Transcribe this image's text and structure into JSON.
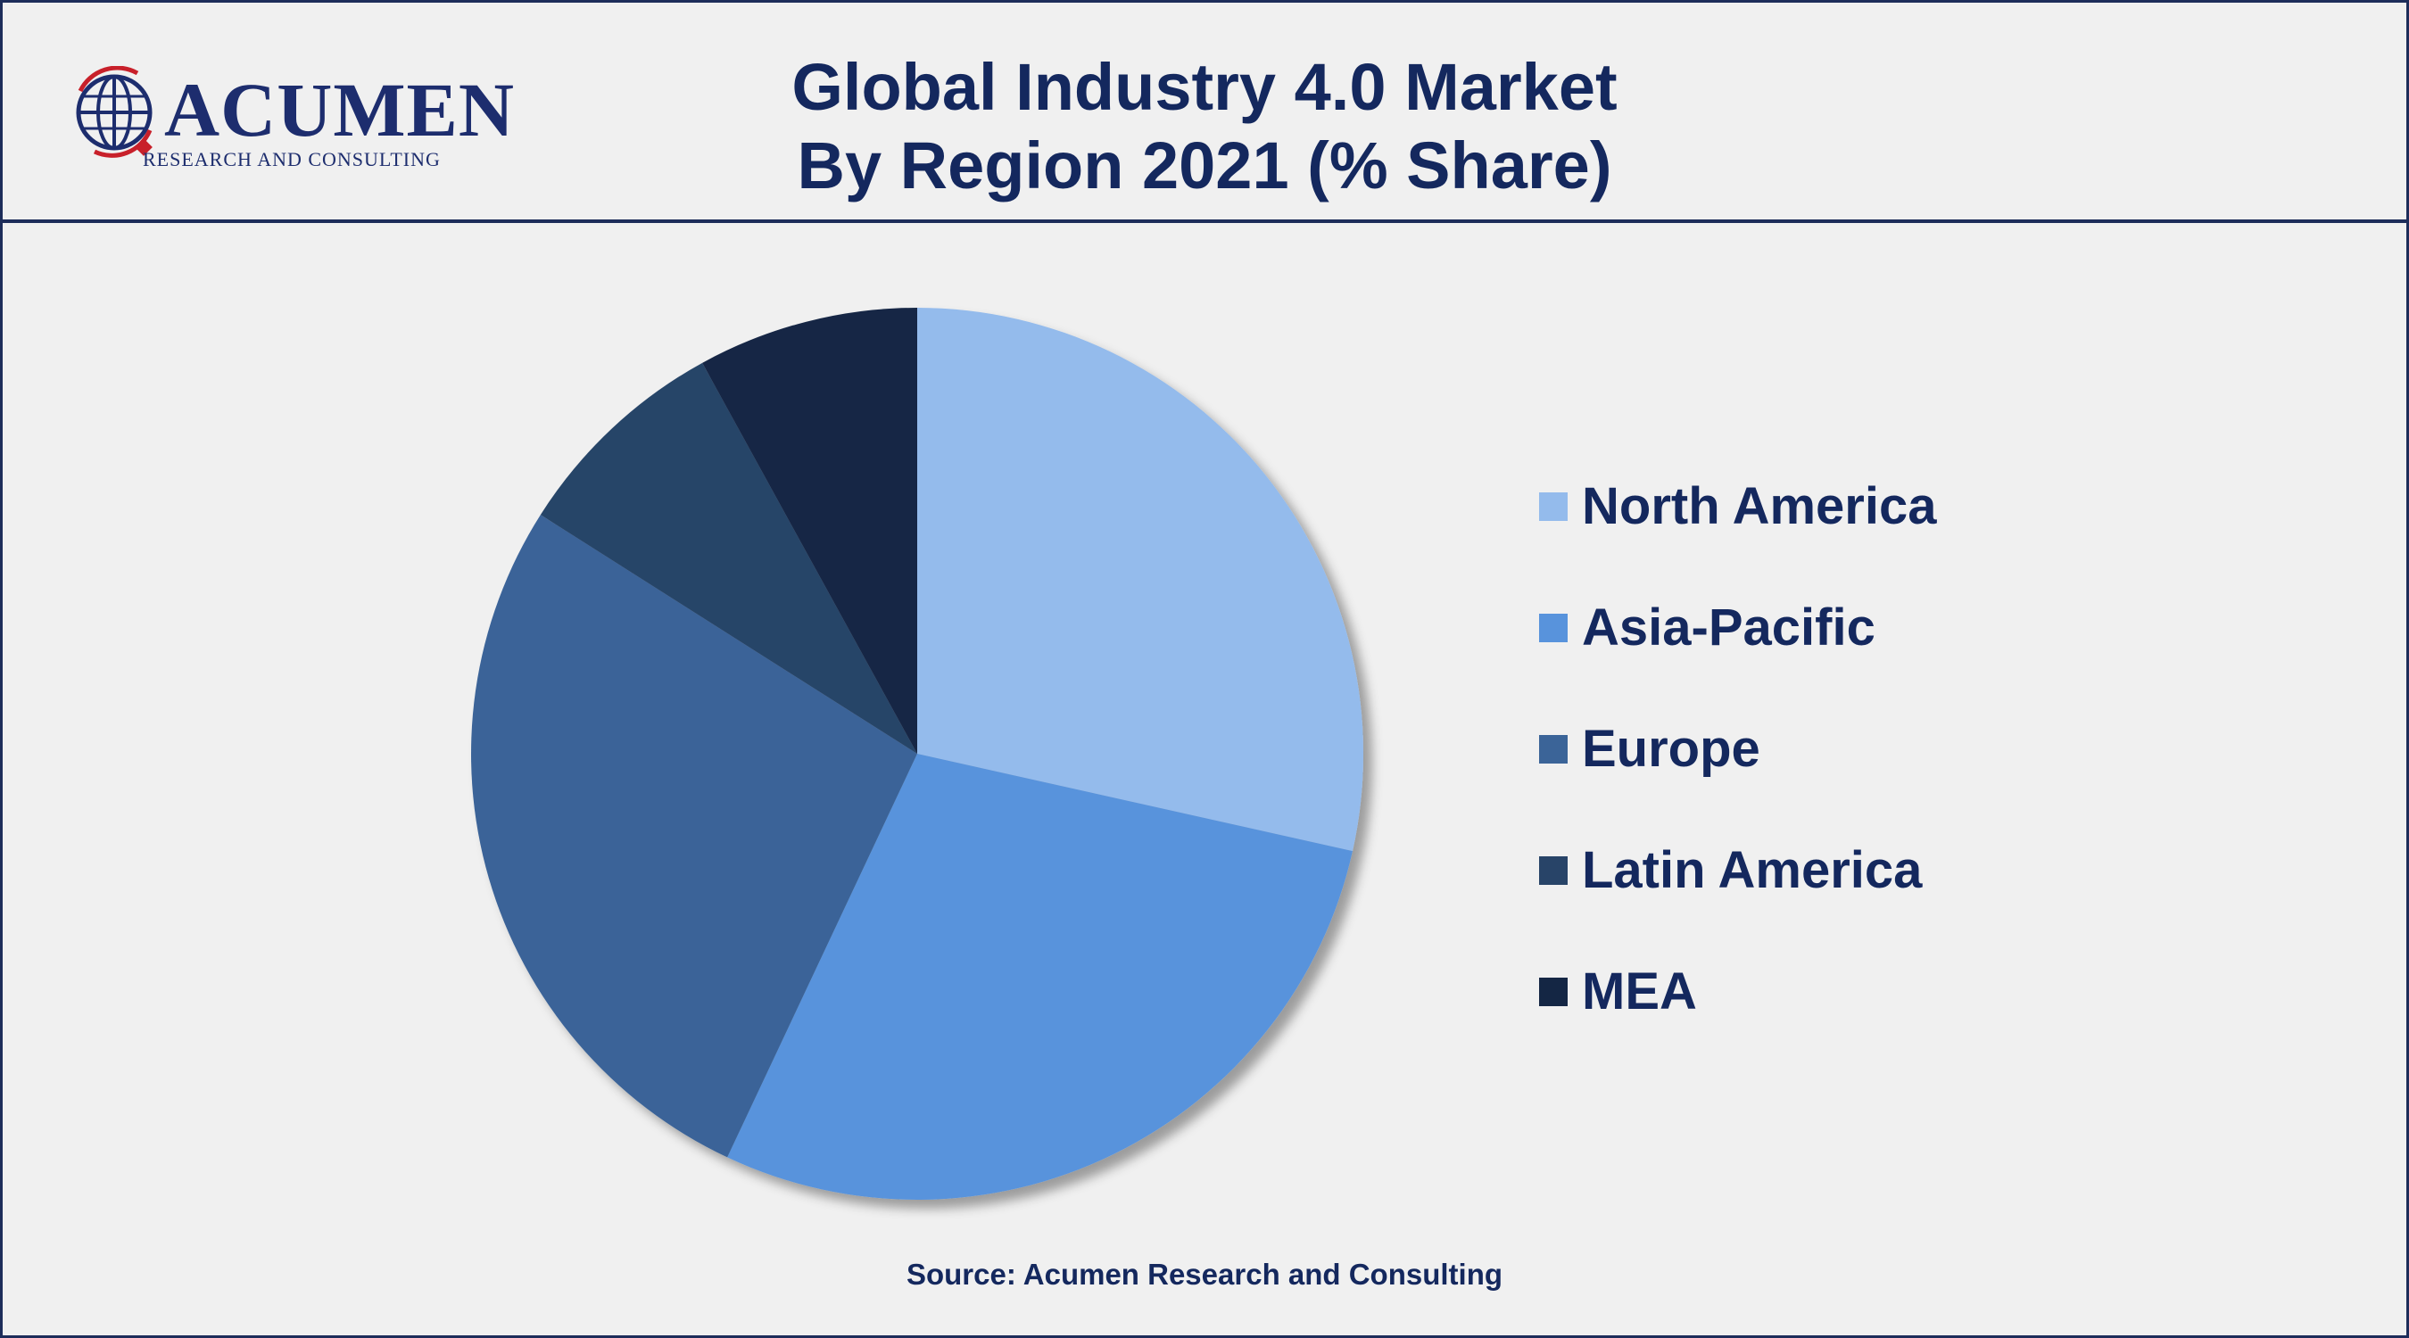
{
  "logo": {
    "word": "ACUMEN",
    "sub": "RESEARCH AND CONSULTING"
  },
  "title_line1": "Global Industry 4.0 Market",
  "title_line2": "By Region 2021 (% Share)",
  "source": "Source: Acumen Research and Consulting",
  "colors": {
    "title": "#14285e",
    "border": "#1d2d5a",
    "background": "#f0f0f0"
  },
  "chart_data": {
    "type": "pie",
    "title": "Global Industry 4.0 Market By Region 2021 (% Share)",
    "start_angle": "12 o'clock, clockwise",
    "legend_position": "right",
    "categories": [
      "North America",
      "Asia-Pacific",
      "Europe",
      "Latin America",
      "MEA"
    ],
    "values": [
      28.5,
      28.5,
      27.0,
      8.0,
      8.0
    ],
    "colors": [
      "#94bbec",
      "#5893dc",
      "#3b6498",
      "#284468",
      "#142644"
    ]
  }
}
